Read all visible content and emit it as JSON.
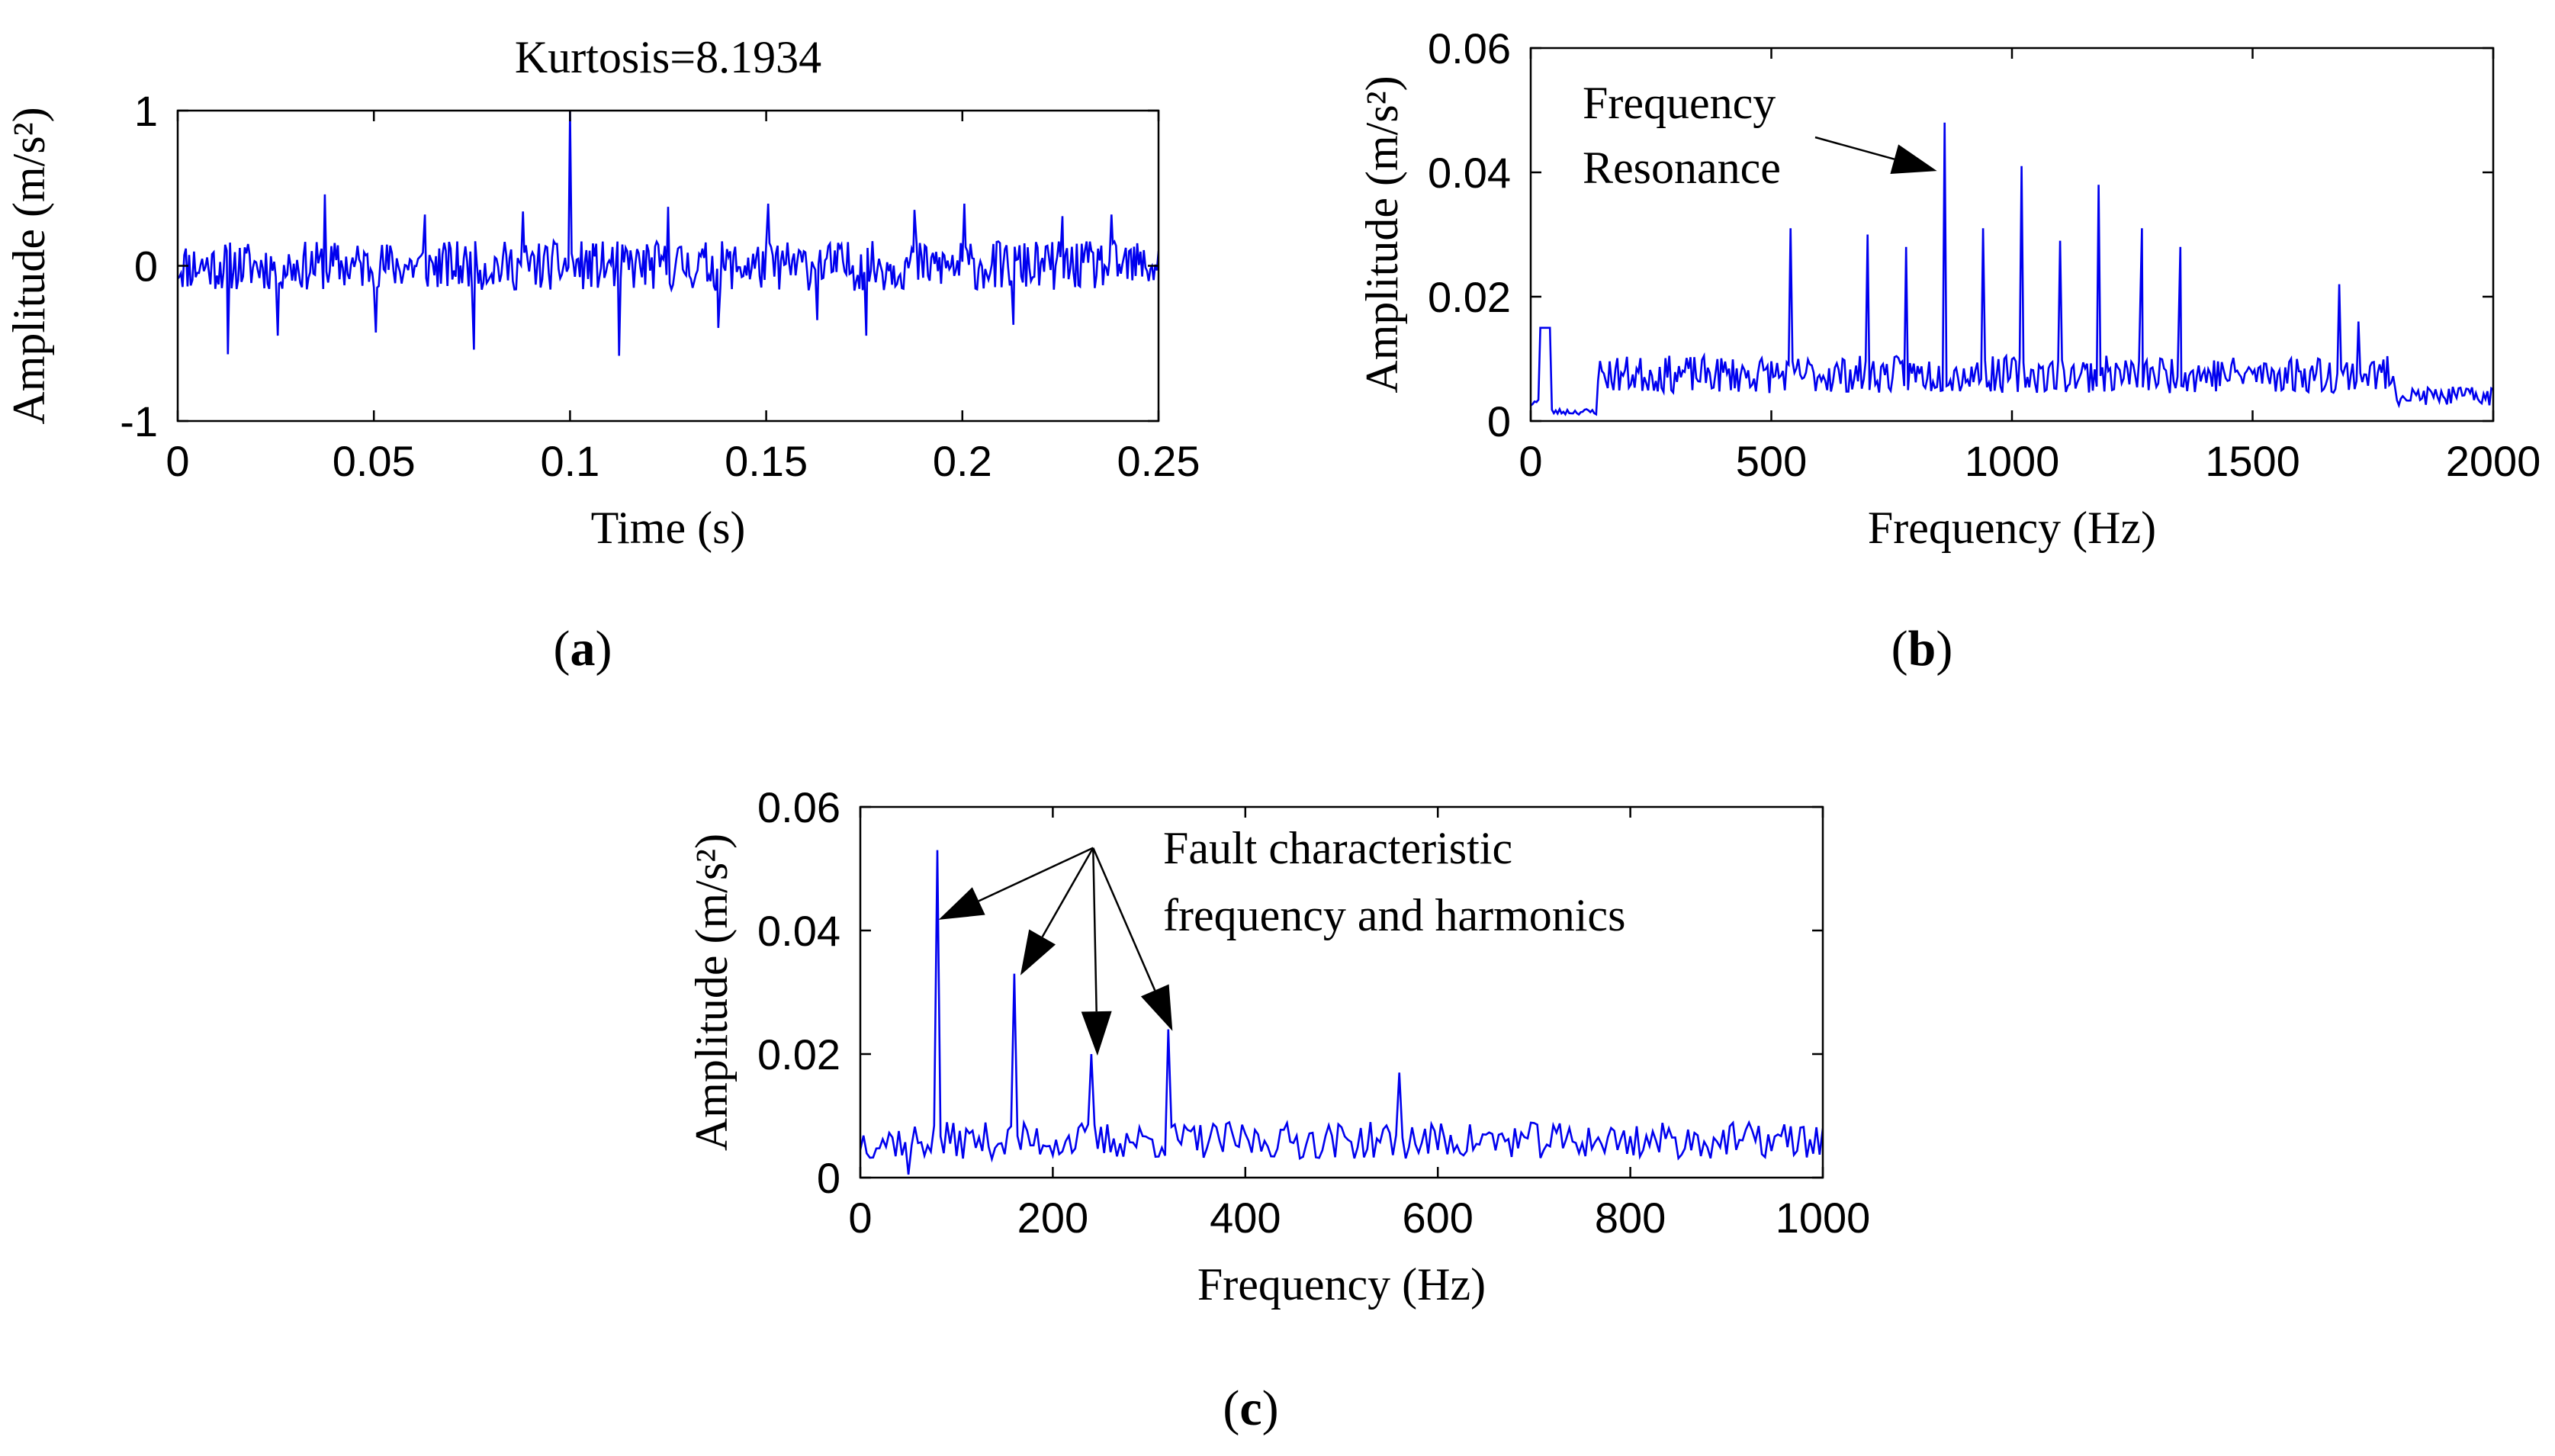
{
  "chart_data": [
    {
      "id": "a",
      "type": "line",
      "title": "Kurtosis=8.1934",
      "xlabel": "Time (s)",
      "ylabel": "Amplitude (m/s²)",
      "xlim": [
        0,
        0.25
      ],
      "ylim": [
        -1,
        1
      ],
      "xticks": [
        0,
        0.05,
        0.1,
        0.15,
        0.2,
        0.25
      ],
      "xtick_labels": [
        "0",
        "0.05",
        "0.1",
        "0.15",
        "0.2",
        "0.25"
      ],
      "yticks": [
        -1,
        0,
        1
      ],
      "ytick_labels": [
        "-1",
        "0",
        "1"
      ],
      "caption": "a",
      "series_color": "#0000ee",
      "signal": {
        "n": 600,
        "noise_amplitude": 0.16,
        "seed": 11,
        "spikes": [
          {
            "x": 0.1,
            "y": 1.0
          },
          {
            "x": 0.0128,
            "y": -0.57
          },
          {
            "x": 0.0255,
            "y": -0.45
          },
          {
            "x": 0.0375,
            "y": 0.46
          },
          {
            "x": 0.0505,
            "y": -0.43
          },
          {
            "x": 0.063,
            "y": 0.33
          },
          {
            "x": 0.0755,
            "y": -0.54
          },
          {
            "x": 0.088,
            "y": 0.35
          },
          {
            "x": 0.1125,
            "y": -0.58
          },
          {
            "x": 0.125,
            "y": 0.38
          },
          {
            "x": 0.1378,
            "y": -0.4
          },
          {
            "x": 0.1505,
            "y": 0.4
          },
          {
            "x": 0.163,
            "y": -0.35
          },
          {
            "x": 0.1755,
            "y": -0.45
          },
          {
            "x": 0.1878,
            "y": 0.36
          },
          {
            "x": 0.2005,
            "y": 0.4
          },
          {
            "x": 0.213,
            "y": -0.38
          },
          {
            "x": 0.2255,
            "y": 0.32
          },
          {
            "x": 0.238,
            "y": 0.33
          }
        ]
      }
    },
    {
      "id": "b",
      "type": "line",
      "title": "",
      "xlabel": "Frequency (Hz)",
      "ylabel": "Amplitude (m/s²)",
      "xlim": [
        0,
        2000
      ],
      "ylim": [
        0,
        0.06
      ],
      "xticks": [
        0,
        500,
        1000,
        1500,
        2000
      ],
      "xtick_labels": [
        "0",
        "500",
        "1000",
        "1500",
        "2000"
      ],
      "yticks": [
        0,
        0.02,
        0.04,
        0.06
      ],
      "ytick_labels": [
        "0",
        "0.02",
        "0.04",
        "0.06"
      ],
      "caption": "b",
      "series_color": "#0000ee",
      "annotation": {
        "lines": [
          "Frequency",
          "Resonance"
        ],
        "target_x": 860,
        "target_y": 0.039
      },
      "signal": {
        "n": 500,
        "seed": 23,
        "bumps": [
          {
            "x0": 20,
            "x1": 40,
            "y": 0.015
          },
          {
            "x0": 140,
            "x1": 1800,
            "y": 0.0075,
            "jitter": 0.006
          },
          {
            "x0": 1800,
            "x1": 2000,
            "y": 0.004,
            "jitter": 0.003
          }
        ],
        "peaks": [
          {
            "x": 540,
            "y": 0.031
          },
          {
            "x": 700,
            "y": 0.03
          },
          {
            "x": 780,
            "y": 0.028
          },
          {
            "x": 860,
            "y": 0.048
          },
          {
            "x": 940,
            "y": 0.031
          },
          {
            "x": 1020,
            "y": 0.041
          },
          {
            "x": 1100,
            "y": 0.029
          },
          {
            "x": 1180,
            "y": 0.038
          },
          {
            "x": 1270,
            "y": 0.031
          },
          {
            "x": 1350,
            "y": 0.028
          },
          {
            "x": 1680,
            "y": 0.022
          },
          {
            "x": 1720,
            "y": 0.016
          }
        ]
      }
    },
    {
      "id": "c",
      "type": "line",
      "title": "",
      "xlabel": "Frequency (Hz)",
      "ylabel": "Amplitude (m/s²)",
      "xlim": [
        0,
        1000
      ],
      "ylim": [
        0,
        0.06
      ],
      "xticks": [
        0,
        200,
        400,
        600,
        800,
        1000
      ],
      "xtick_labels": [
        "0",
        "200",
        "400",
        "600",
        "800",
        "1000"
      ],
      "yticks": [
        0,
        0.02,
        0.04,
        0.06
      ],
      "ytick_labels": [
        "0",
        "0.02",
        "0.04",
        "0.06"
      ],
      "caption": "c",
      "series_color": "#0000ee",
      "annotation": {
        "lines": [
          "Fault characteristic",
          "frequency and harmonics"
        ],
        "origin": {
          "x": 230,
          "y": 0.054
        },
        "targets": [
          {
            "x": 75,
            "y": 0.041
          },
          {
            "x": 160,
            "y": 0.032
          },
          {
            "x": 240,
            "y": 0.019
          },
          {
            "x": 318,
            "y": 0.023
          }
        ]
      },
      "signal": {
        "n": 300,
        "seed": 37,
        "base": 0.006,
        "jitter": 0.006,
        "peaks": [
          {
            "x": 80,
            "y": 0.053
          },
          {
            "x": 160,
            "y": 0.033
          },
          {
            "x": 240,
            "y": 0.02
          },
          {
            "x": 320,
            "y": 0.024
          },
          {
            "x": 560,
            "y": 0.017
          }
        ],
        "dips": [
          {
            "x": 50,
            "y": 0.0005
          }
        ]
      }
    }
  ]
}
